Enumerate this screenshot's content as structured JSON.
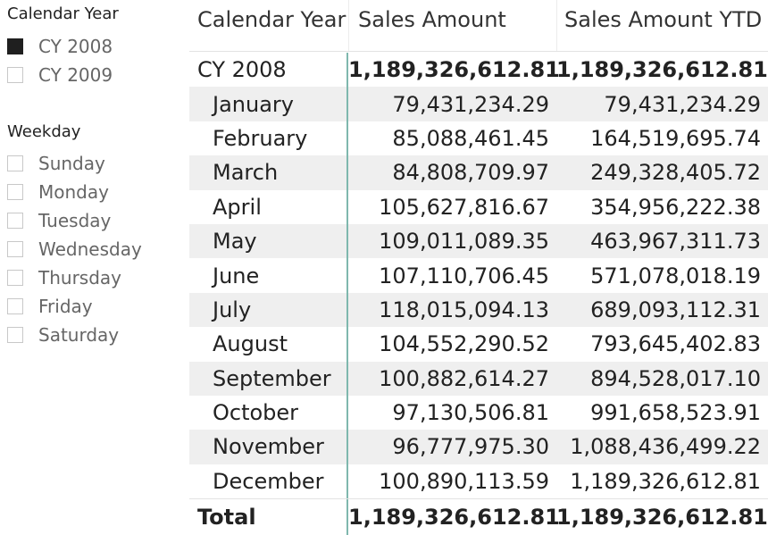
{
  "slicers": {
    "calendar_year": {
      "title": "Calendar Year",
      "items": [
        {
          "label": "CY 2008",
          "checked": true
        },
        {
          "label": "CY 2009",
          "checked": false
        }
      ]
    },
    "weekday": {
      "title": "Weekday",
      "items": [
        {
          "label": "Sunday",
          "checked": false
        },
        {
          "label": "Monday",
          "checked": false
        },
        {
          "label": "Tuesday",
          "checked": false
        },
        {
          "label": "Wednesday",
          "checked": false
        },
        {
          "label": "Thursday",
          "checked": false
        },
        {
          "label": "Friday",
          "checked": false
        },
        {
          "label": "Saturday",
          "checked": false
        }
      ]
    }
  },
  "matrix": {
    "headers": [
      "Calendar Year",
      "Sales Amount",
      "Sales Amount YTD"
    ],
    "year_row": {
      "label": "CY 2008",
      "sales": "1,189,326,612.81",
      "ytd": "1,189,326,612.81"
    },
    "months": [
      {
        "label": "January",
        "sales": "79,431,234.29",
        "ytd": "79,431,234.29"
      },
      {
        "label": "February",
        "sales": "85,088,461.45",
        "ytd": "164,519,695.74"
      },
      {
        "label": "March",
        "sales": "84,808,709.97",
        "ytd": "249,328,405.72"
      },
      {
        "label": "April",
        "sales": "105,627,816.67",
        "ytd": "354,956,222.38"
      },
      {
        "label": "May",
        "sales": "109,011,089.35",
        "ytd": "463,967,311.73"
      },
      {
        "label": "June",
        "sales": "107,110,706.45",
        "ytd": "571,078,018.19"
      },
      {
        "label": "July",
        "sales": "118,015,094.13",
        "ytd": "689,093,112.31"
      },
      {
        "label": "August",
        "sales": "104,552,290.52",
        "ytd": "793,645,402.83"
      },
      {
        "label": "September",
        "sales": "100,882,614.27",
        "ytd": "894,528,017.10"
      },
      {
        "label": "October",
        "sales": "97,130,506.81",
        "ytd": "991,658,523.91"
      },
      {
        "label": "November",
        "sales": "96,777,975.30",
        "ytd": "1,088,436,499.22"
      },
      {
        "label": "December",
        "sales": "100,890,113.59",
        "ytd": "1,189,326,612.81"
      }
    ],
    "total_row": {
      "label": "Total",
      "sales": "1,189,326,612.81",
      "ytd": "1,189,326,612.81"
    }
  }
}
